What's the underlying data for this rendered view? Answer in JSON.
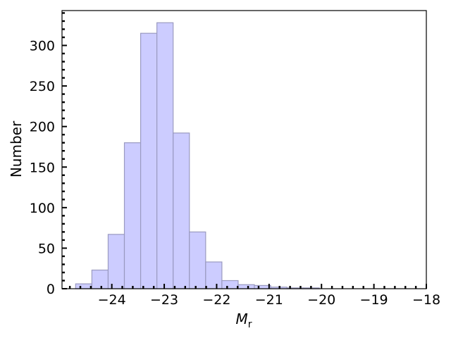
{
  "chart_data": {
    "type": "bar",
    "xlabel_main": "M",
    "xlabel_sub": "r",
    "ylabel": "Number",
    "xlim": [
      -24.95,
      -18.0
    ],
    "ylim": [
      0,
      343
    ],
    "grid": false,
    "x_ticks": [
      -24,
      -23,
      -22,
      -21,
      -20,
      -19,
      -18
    ],
    "x_tick_labels": [
      "−24",
      "−23",
      "−22",
      "−21",
      "−20",
      "−19",
      "−18"
    ],
    "y_ticks": [
      0,
      50,
      100,
      150,
      200,
      250,
      300
    ],
    "y_tick_labels": [
      "0",
      "50",
      "100",
      "150",
      "200",
      "250",
      "300"
    ],
    "bin_edges": [
      -24.69,
      -24.38,
      -24.07,
      -23.76,
      -23.45,
      -23.14,
      -22.83,
      -22.52,
      -22.21,
      -21.9,
      -21.59,
      -21.28,
      -20.97,
      -20.66,
      -20.35,
      -20.04
    ],
    "counts": [
      6,
      23,
      67,
      180,
      315,
      328,
      192,
      70,
      33,
      10,
      5,
      4,
      2,
      1,
      1
    ],
    "bar_fill": "#ccccff",
    "bar_stroke": "#9a9ac0"
  }
}
